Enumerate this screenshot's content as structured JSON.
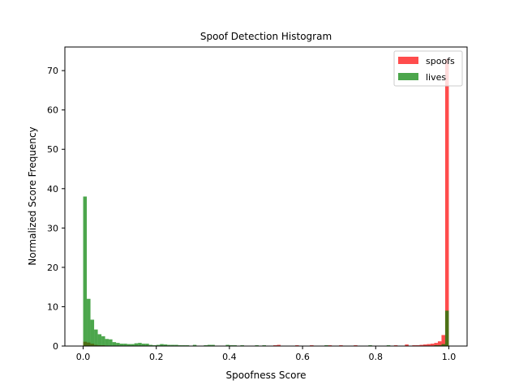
{
  "chart_data": {
    "type": "bar",
    "title": "Spoof Detection Histogram",
    "xlabel": "Spoofness Score",
    "ylabel": "Normalized Score Frequency",
    "xlim": [
      -0.05,
      1.05
    ],
    "ylim": [
      0,
      76
    ],
    "xticks": [
      "0.0",
      "0.2",
      "0.4",
      "0.6",
      "0.8",
      "1.0"
    ],
    "yticks": [
      "0",
      "10",
      "20",
      "30",
      "40",
      "50",
      "60",
      "70"
    ],
    "grid": false,
    "legend_position": "top-right",
    "bin_width": 0.01,
    "series": [
      {
        "name": "spoofs",
        "color": "#ff0000",
        "opacity": 0.7,
        "bins": [
          [
            0.0,
            1.1
          ],
          [
            0.01,
            0.9
          ],
          [
            0.02,
            0.6
          ],
          [
            0.03,
            0.3
          ],
          [
            0.04,
            0.2
          ],
          [
            0.05,
            0.2
          ],
          [
            0.06,
            0.1
          ],
          [
            0.07,
            0.1
          ],
          [
            0.52,
            0.2
          ],
          [
            0.53,
            0.3
          ],
          [
            0.58,
            0.2
          ],
          [
            0.62,
            0.2
          ],
          [
            0.67,
            0.2
          ],
          [
            0.7,
            0.2
          ],
          [
            0.74,
            0.2
          ],
          [
            0.85,
            0.2
          ],
          [
            0.88,
            0.4
          ],
          [
            0.9,
            0.2
          ],
          [
            0.91,
            0.2
          ],
          [
            0.92,
            0.3
          ],
          [
            0.93,
            0.4
          ],
          [
            0.94,
            0.5
          ],
          [
            0.95,
            0.6
          ],
          [
            0.96,
            0.8
          ],
          [
            0.97,
            1.2
          ],
          [
            0.98,
            2.8
          ],
          [
            0.99,
            73.0
          ]
        ]
      },
      {
        "name": "lives",
        "color": "#008000",
        "opacity": 0.7,
        "bins": [
          [
            0.0,
            38.0
          ],
          [
            0.01,
            12.0
          ],
          [
            0.02,
            6.7
          ],
          [
            0.03,
            4.2
          ],
          [
            0.04,
            3.0
          ],
          [
            0.05,
            2.5
          ],
          [
            0.06,
            1.8
          ],
          [
            0.07,
            1.7
          ],
          [
            0.08,
            1.0
          ],
          [
            0.09,
            0.8
          ],
          [
            0.1,
            0.6
          ],
          [
            0.11,
            0.6
          ],
          [
            0.12,
            0.5
          ],
          [
            0.13,
            0.5
          ],
          [
            0.14,
            0.7
          ],
          [
            0.15,
            0.8
          ],
          [
            0.16,
            0.6
          ],
          [
            0.17,
            0.6
          ],
          [
            0.18,
            0.3
          ],
          [
            0.19,
            0.2
          ],
          [
            0.2,
            0.3
          ],
          [
            0.21,
            0.5
          ],
          [
            0.22,
            0.4
          ],
          [
            0.23,
            0.3
          ],
          [
            0.24,
            0.3
          ],
          [
            0.25,
            0.3
          ],
          [
            0.26,
            0.2
          ],
          [
            0.27,
            0.2
          ],
          [
            0.28,
            0.2
          ],
          [
            0.29,
            0.1
          ],
          [
            0.3,
            0.3
          ],
          [
            0.31,
            0.1
          ],
          [
            0.32,
            0.1
          ],
          [
            0.33,
            0.2
          ],
          [
            0.34,
            0.3
          ],
          [
            0.35,
            0.3
          ],
          [
            0.36,
            0.1
          ],
          [
            0.37,
            0.1
          ],
          [
            0.38,
            0.1
          ],
          [
            0.39,
            0.3
          ],
          [
            0.4,
            0.2
          ],
          [
            0.41,
            0.2
          ],
          [
            0.42,
            0.1
          ],
          [
            0.43,
            0.2
          ],
          [
            0.44,
            0.1
          ],
          [
            0.45,
            0.1
          ],
          [
            0.46,
            0.1
          ],
          [
            0.47,
            0.2
          ],
          [
            0.48,
            0.1
          ],
          [
            0.49,
            0.2
          ],
          [
            0.5,
            0.1
          ],
          [
            0.51,
            0.1
          ],
          [
            0.52,
            0.1
          ],
          [
            0.53,
            0.1
          ],
          [
            0.55,
            0.1
          ],
          [
            0.56,
            0.1
          ],
          [
            0.58,
            0.1
          ],
          [
            0.6,
            0.1
          ],
          [
            0.63,
            0.1
          ],
          [
            0.65,
            0.1
          ],
          [
            0.66,
            0.2
          ],
          [
            0.7,
            0.1
          ],
          [
            0.73,
            0.1
          ],
          [
            0.76,
            0.1
          ],
          [
            0.78,
            0.2
          ],
          [
            0.8,
            0.1
          ],
          [
            0.83,
            0.2
          ],
          [
            0.86,
            0.1
          ],
          [
            0.88,
            0.1
          ],
          [
            0.9,
            0.1
          ],
          [
            0.92,
            0.1
          ],
          [
            0.94,
            0.1
          ],
          [
            0.96,
            0.2
          ],
          [
            0.97,
            0.2
          ],
          [
            0.98,
            0.5
          ],
          [
            0.99,
            9.0
          ]
        ]
      }
    ]
  }
}
